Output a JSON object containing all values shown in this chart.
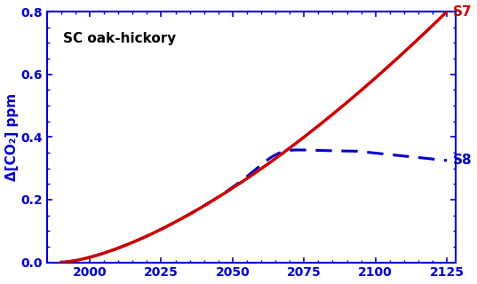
{
  "title": "SC oak-hickory",
  "ylabel": "Δ[CO₂] ppm",
  "xlim": [
    1985,
    2128
  ],
  "ylim": [
    0.0,
    0.8
  ],
  "xticks": [
    2000,
    2025,
    2050,
    2075,
    2100,
    2125
  ],
  "yticks": [
    0.0,
    0.2,
    0.4,
    0.6,
    0.8
  ],
  "label_S7": "S7",
  "label_S8": "S8",
  "color_S7": "#cc0000",
  "color_S8": "#0000cc",
  "axis_color": "#0000cc",
  "title_color": "#000000",
  "background_color": "#ffffff",
  "figsize": [
    5.37,
    3.2
  ],
  "dpi": 100
}
